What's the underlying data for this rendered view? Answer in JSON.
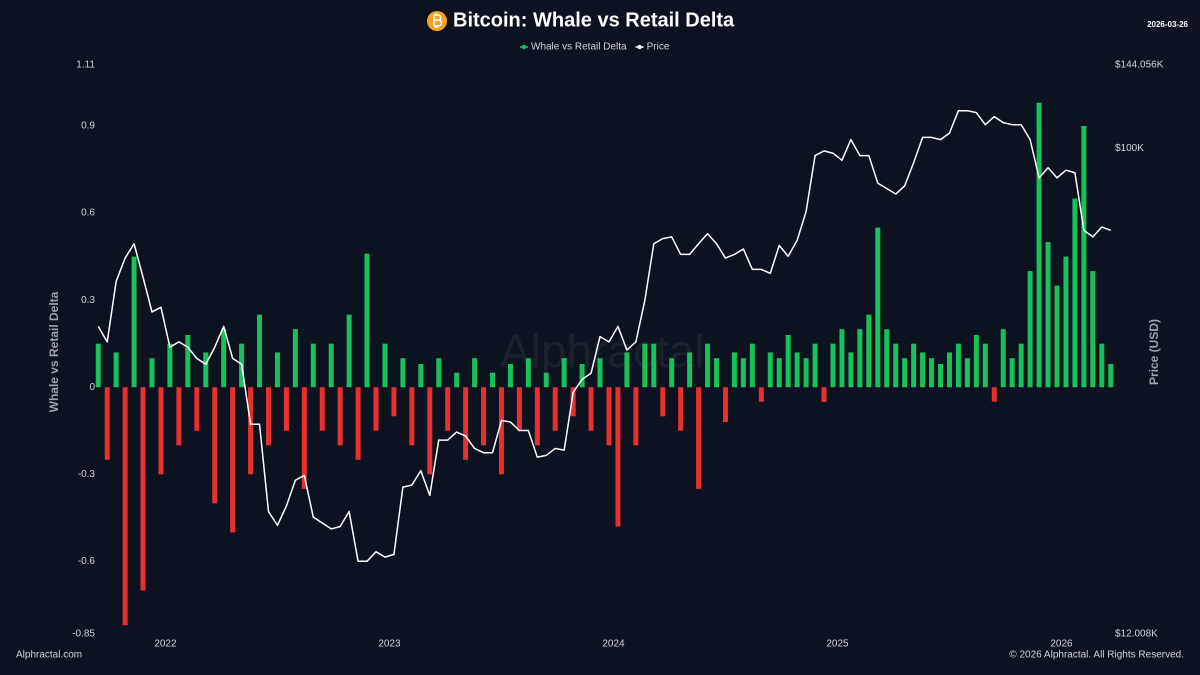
{
  "chart_data": {
    "type": "combo",
    "title": "Bitcoin: Whale vs Retail Delta",
    "date": "2026-03-26",
    "y_label": "Whale vs Retail Delta",
    "y2_label": "Price (USD)",
    "watermark": "Alphractal",
    "footer_left": "Alphractal.com",
    "footer_right": "© 2026 Alphractal. All Rights Reserved.",
    "xlim": [
      2021.69,
      2026.23
    ],
    "xticks": [
      2022,
      2023,
      2024,
      2025,
      2026
    ],
    "ylim": [
      -0.85,
      1.11
    ],
    "yticks": [
      -0.85,
      -0.6,
      -0.3,
      0,
      0.3,
      0.6,
      0.9,
      1.11
    ],
    "y2lim": [
      12008,
      144056
    ],
    "y2scale": "log",
    "y2ticks": [
      {
        "value": 12008,
        "label": "$12.008K"
      },
      {
        "value": 100000,
        "label": "$100K"
      },
      {
        "value": 144056,
        "label": "$144.056K"
      }
    ],
    "grid": false,
    "legend": "top",
    "x": [
      2021.7,
      2021.74,
      2021.78,
      2021.82,
      2021.86,
      2021.9,
      2021.94,
      2021.98,
      2022.02,
      2022.06,
      2022.1,
      2022.14,
      2022.18,
      2022.22,
      2022.26,
      2022.3,
      2022.34,
      2022.38,
      2022.42,
      2022.46,
      2022.5,
      2022.54,
      2022.58,
      2022.62,
      2022.66,
      2022.7,
      2022.74,
      2022.78,
      2022.82,
      2022.86,
      2022.9,
      2022.94,
      2022.98,
      2023.02,
      2023.06,
      2023.1,
      2023.14,
      2023.18,
      2023.22,
      2023.26,
      2023.3,
      2023.34,
      2023.38,
      2023.42,
      2023.46,
      2023.5,
      2023.54,
      2023.58,
      2023.62,
      2023.66,
      2023.7,
      2023.74,
      2023.78,
      2023.82,
      2023.86,
      2023.9,
      2023.94,
      2023.98,
      2024.02,
      2024.06,
      2024.1,
      2024.14,
      2024.18,
      2024.22,
      2024.26,
      2024.3,
      2024.34,
      2024.38,
      2024.42,
      2024.46,
      2024.5,
      2024.54,
      2024.58,
      2024.62,
      2024.66,
      2024.7,
      2024.74,
      2024.78,
      2024.82,
      2024.86,
      2024.9,
      2024.94,
      2024.98,
      2025.02,
      2025.06,
      2025.1,
      2025.14,
      2025.18,
      2025.22,
      2025.26,
      2025.3,
      2025.34,
      2025.38,
      2025.42,
      2025.46,
      2025.5,
      2025.54,
      2025.58,
      2025.62,
      2025.66,
      2025.7,
      2025.74,
      2025.78,
      2025.82,
      2025.86,
      2025.9,
      2025.94,
      2025.98,
      2026.02,
      2026.06,
      2026.1,
      2026.14,
      2026.18,
      2026.22
    ],
    "series": [
      {
        "name": "Whale vs Retail Delta",
        "type": "bar",
        "color": "#19c15a",
        "negative_color": "#e8302f",
        "values": [
          0.15,
          -0.25,
          0.12,
          -0.82,
          0.45,
          -0.7,
          0.1,
          -0.3,
          0.15,
          -0.2,
          0.18,
          -0.15,
          0.12,
          -0.4,
          0.2,
          -0.5,
          0.15,
          -0.3,
          0.25,
          -0.2,
          0.12,
          -0.15,
          0.2,
          -0.35,
          0.15,
          -0.15,
          0.15,
          -0.2,
          0.25,
          -0.25,
          0.46,
          -0.15,
          0.15,
          -0.1,
          0.1,
          -0.2,
          0.08,
          -0.3,
          0.1,
          -0.15,
          0.05,
          -0.25,
          0.1,
          -0.2,
          0.05,
          -0.3,
          0.08,
          -0.15,
          0.1,
          -0.2,
          0.05,
          -0.15,
          0.1,
          -0.1,
          0.08,
          -0.15,
          0.1,
          -0.2,
          -0.48,
          0.12,
          -0.2,
          0.15,
          0.15,
          -0.1,
          0.1,
          -0.15,
          0.12,
          -0.35,
          0.15,
          0.1,
          -0.12,
          0.12,
          0.1,
          0.15,
          -0.05,
          0.12,
          0.1,
          0.18,
          0.12,
          0.1,
          0.15,
          -0.05,
          0.15,
          0.2,
          0.12,
          0.2,
          0.25,
          0.55,
          0.2,
          0.15,
          0.1,
          0.15,
          0.12,
          0.1,
          0.08,
          0.12,
          0.15,
          0.1,
          0.18,
          0.15,
          -0.05,
          0.2,
          0.1,
          0.15,
          0.4,
          0.98,
          0.5,
          0.35,
          0.45,
          0.65,
          0.9,
          0.4,
          0.15,
          0.08
        ]
      },
      {
        "name": "Price",
        "type": "line",
        "axis": "y2",
        "color": "#ffffff",
        "values": [
          46000,
          43000,
          56000,
          62000,
          66000,
          57000,
          49000,
          50000,
          42000,
          43000,
          42000,
          40000,
          39000,
          42000,
          46000,
          40000,
          39000,
          30000,
          30000,
          20500,
          19300,
          21000,
          23500,
          24000,
          20000,
          19500,
          19000,
          19200,
          20500,
          16500,
          16500,
          17200,
          16800,
          17000,
          22800,
          23000,
          24500,
          22000,
          28000,
          28000,
          29000,
          28500,
          27000,
          26500,
          26500,
          30500,
          30300,
          29200,
          29200,
          26000,
          26200,
          27000,
          26800,
          34500,
          36500,
          37500,
          44000,
          43000,
          46000,
          41500,
          43000,
          51500,
          66000,
          67500,
          68000,
          63000,
          63000,
          66000,
          69000,
          66000,
          62000,
          63000,
          64500,
          59000,
          59000,
          58000,
          65500,
          62500,
          67000,
          76000,
          97000,
          99000,
          98000,
          95000,
          104000,
          97000,
          97000,
          86000,
          84000,
          82000,
          85000,
          94000,
          105000,
          105000,
          104000,
          107000,
          118000,
          118000,
          117000,
          111000,
          115000,
          112000,
          111000,
          111000,
          104000,
          88000,
          92000,
          88000,
          91000,
          90000,
          70000,
          68000,
          71000,
          70000
        ]
      }
    ]
  }
}
